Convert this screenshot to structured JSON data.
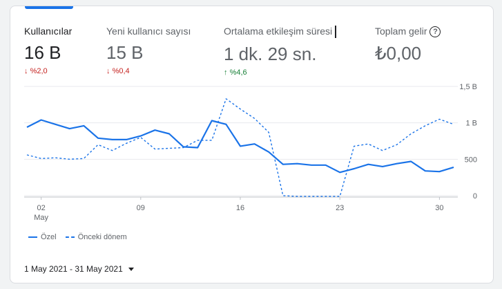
{
  "colors": {
    "accent": "#1a73e8",
    "down": "#c5221f",
    "up": "#188038",
    "grid": "#e8eaed",
    "text_muted": "#5f6368"
  },
  "metrics": [
    {
      "label": "Kullanıcılar",
      "value": "16 B",
      "change": "%2,0",
      "direction": "down"
    },
    {
      "label": "Yeni kullanıcı sayısı",
      "value": "15 B",
      "change": "%0,4",
      "direction": "down"
    },
    {
      "label": "Ortalama etkileşim süresi",
      "value": "1 dk. 29 sn.",
      "change": "%4,6",
      "direction": "up"
    },
    {
      "label": "Toplam gelir",
      "value": "₺0,00",
      "help_icon": "help-circle-icon"
    }
  ],
  "arrows": {
    "down": "↓",
    "up": "↑"
  },
  "chart_data": {
    "type": "line",
    "x": [
      1,
      2,
      3,
      4,
      5,
      6,
      7,
      8,
      9,
      10,
      11,
      12,
      13,
      14,
      15,
      16,
      17,
      18,
      19,
      20,
      21,
      22,
      23,
      24,
      25,
      26,
      27,
      28,
      29,
      30,
      31
    ],
    "x_ticks": [
      {
        "x": 2,
        "label": "02",
        "sublabel": "May"
      },
      {
        "x": 9,
        "label": "09"
      },
      {
        "x": 16,
        "label": "16"
      },
      {
        "x": 23,
        "label": "23"
      },
      {
        "x": 30,
        "label": "30"
      }
    ],
    "y_ticks": [
      {
        "value": 0,
        "label": "0"
      },
      {
        "value": 500,
        "label": "500"
      },
      {
        "value": 1000,
        "label": "1 B"
      },
      {
        "value": 1500,
        "label": "1,5 B"
      }
    ],
    "ylim": [
      0,
      1500
    ],
    "grid": true,
    "series": [
      {
        "name": "Özel",
        "style": "solid",
        "values": [
          940,
          1040,
          980,
          920,
          960,
          790,
          770,
          770,
          820,
          900,
          850,
          670,
          660,
          1030,
          980,
          680,
          710,
          600,
          430,
          440,
          420,
          420,
          320,
          370,
          430,
          400,
          440,
          470,
          340,
          330,
          390
        ]
      },
      {
        "name": "Önceki dönem",
        "style": "dashed",
        "values": [
          560,
          510,
          520,
          500,
          510,
          700,
          620,
          720,
          800,
          640,
          650,
          660,
          760,
          760,
          1330,
          1190,
          1060,
          870,
          0,
          -10,
          -10,
          -10,
          -10,
          680,
          710,
          620,
          700,
          850,
          960,
          1050,
          980
        ]
      }
    ]
  },
  "legend": {
    "items": [
      {
        "label": "Özel"
      },
      {
        "label": "Önceki dönem"
      }
    ]
  },
  "date_range": "1 May 2021 - 31 May 2021"
}
